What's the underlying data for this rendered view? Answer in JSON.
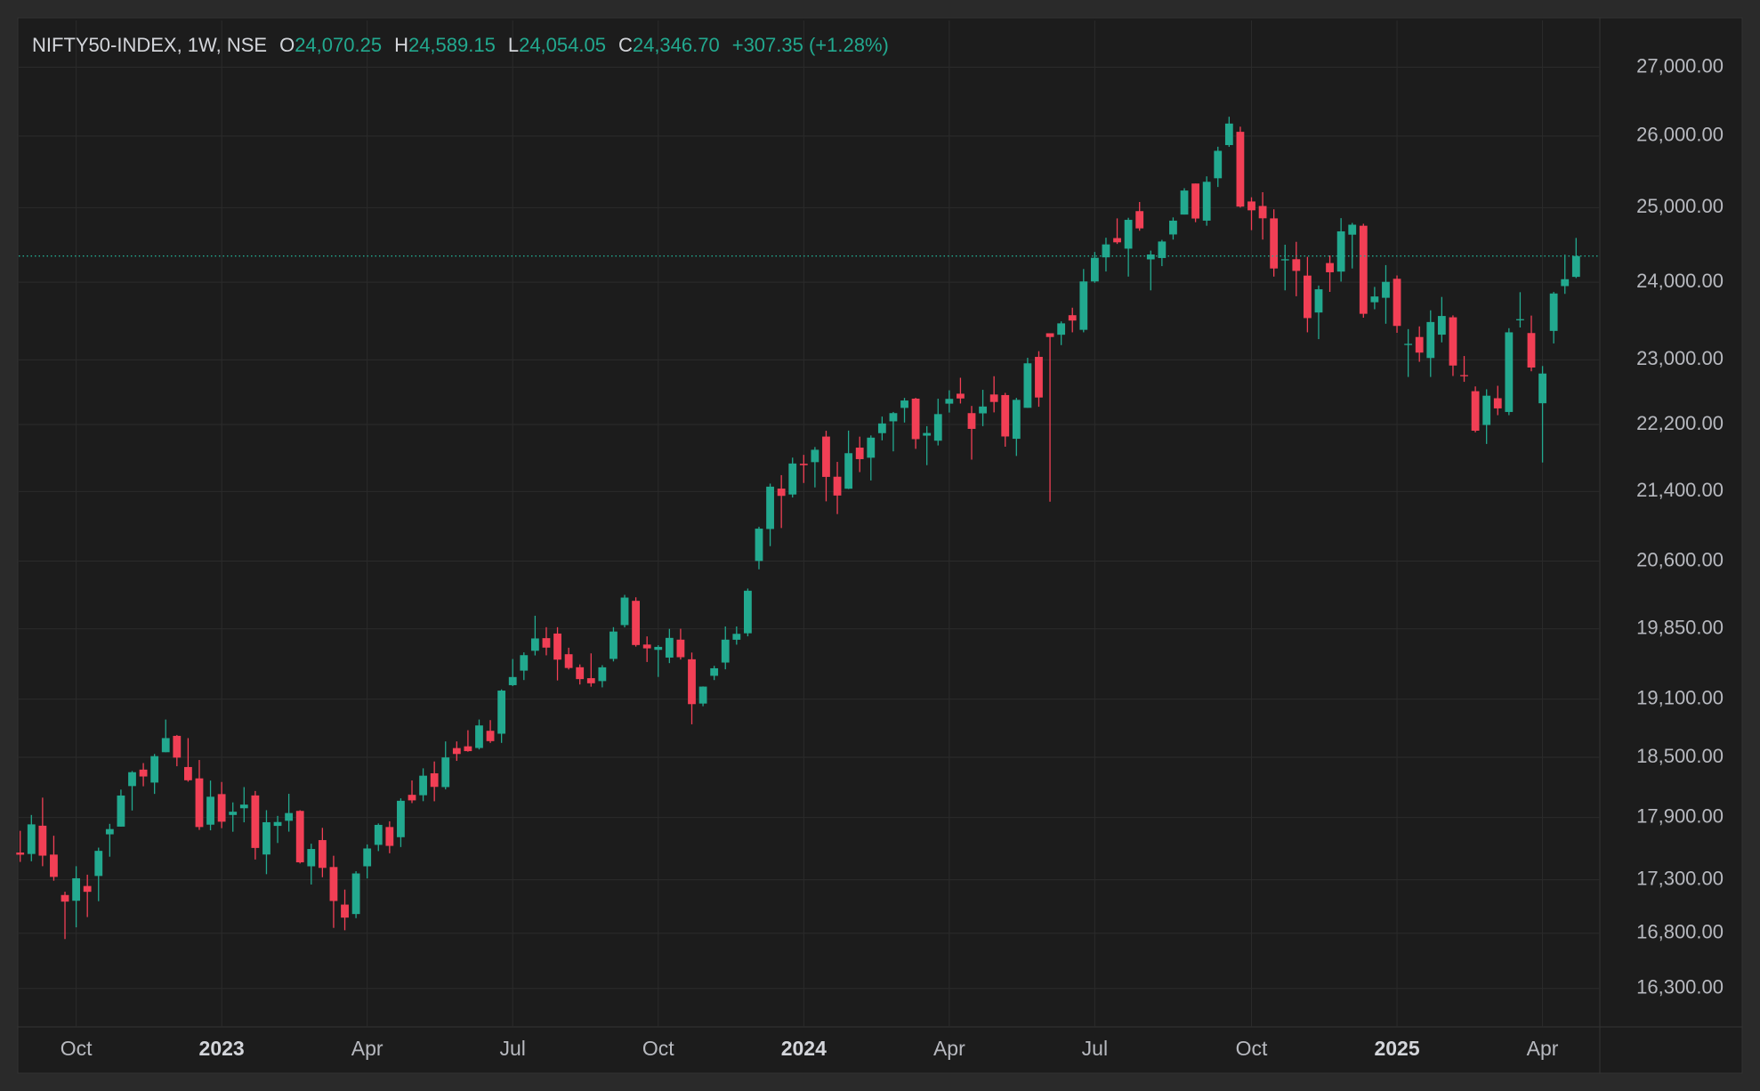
{
  "header": {
    "symbol": "NIFTY50-INDEX, 1W, NSE",
    "fields": [
      {
        "key": "O",
        "value": "24,070.25"
      },
      {
        "key": "H",
        "value": "24,589.15"
      },
      {
        "key": "L",
        "value": "24,054.05"
      },
      {
        "key": "C",
        "value": "24,346.70"
      }
    ],
    "change": "+307.35 (+1.28%)"
  },
  "chart_data": {
    "type": "candlestick",
    "log_scale": true,
    "grid": true,
    "up_color": "#22a98f",
    "down_color": "#f23f55",
    "categories": [
      null,
      null,
      null,
      null,
      null,
      "Oct",
      null,
      null,
      null,
      null,
      null,
      null,
      null,
      null,
      null,
      null,
      null,
      null,
      "2023",
      null,
      null,
      null,
      null,
      null,
      null,
      null,
      null,
      null,
      null,
      null,
      null,
      "Apr",
      null,
      null,
      null,
      null,
      null,
      null,
      null,
      null,
      null,
      null,
      null,
      null,
      "Jul",
      null,
      null,
      null,
      null,
      null,
      null,
      null,
      null,
      null,
      null,
      null,
      null,
      "Oct",
      null,
      null,
      null,
      null,
      null,
      null,
      null,
      null,
      null,
      null,
      null,
      null,
      "2024",
      null,
      null,
      null,
      null,
      null,
      null,
      null,
      null,
      null,
      null,
      null,
      null,
      "Apr",
      null,
      null,
      null,
      null,
      null,
      null,
      null,
      null,
      null,
      null,
      null,
      null,
      "Jul",
      null,
      null,
      null,
      null,
      null,
      null,
      null,
      null,
      null,
      null,
      null,
      null,
      null,
      "Oct",
      null,
      null,
      null,
      null,
      null,
      null,
      null,
      null,
      null,
      null,
      null,
      null,
      "2025",
      null,
      null,
      null,
      null,
      null,
      null,
      null,
      null,
      null,
      null,
      null,
      null,
      "Apr",
      null,
      null,
      null
    ],
    "open": [
      17560,
      17546,
      17820,
      17540,
      17156,
      17102,
      17241,
      17336,
      17736,
      17811,
      18211,
      18376,
      18246,
      18552,
      18719,
      18402,
      18288,
      17830,
      18131,
      17925,
      17991,
      18118,
      17541,
      17818,
      17868,
      17965,
      17428,
      17680,
      17421,
      17066,
      16978,
      17428,
      17634,
      17807,
      17708,
      18124,
      18120,
      18339,
      18201,
      18594,
      18612,
      18595,
      18771,
      18741,
      19246,
      19400,
      19612,
      19748,
      19798,
      19575,
      19436,
      19320,
      19289,
      19525,
      19890,
      20156,
      19679,
      19622,
      19539,
      19732,
      19521,
      19053,
      19345,
      19486,
      19731,
      19801,
      20601,
      20965,
      21434,
      21365,
      21728,
      21747,
      22054,
      21574,
      21433,
      21921,
      21800,
      22095,
      22239,
      22403,
      22517,
      22065,
      22004,
      22455,
      22578,
      22339,
      22336,
      22568,
      22561,
      22027,
      22404,
      23038,
      23338,
      23319,
      23570,
      23382,
      24010,
      24329,
      24587,
      24445,
      24953,
      24302,
      24320,
      24636,
      24906,
      25333,
      24823,
      25406,
      25872,
      26061,
      25085,
      25023,
      24854,
      24299,
      24304,
      24087,
      23605,
      24253,
      24140,
      24633,
      24754,
      23738,
      23796,
      24045,
      23195,
      23290,
      23024,
      23320,
      23543,
      22809,
      22609,
      22194,
      22522,
      22353,
      23515,
      23341,
      22460,
      23368,
      23949,
      24070.25
    ],
    "high": [
      17770,
      17925,
      18096,
      17722,
      17187,
      17429,
      17348,
      17607,
      17838,
      18176,
      18362,
      18442,
      18534,
      18887,
      18728,
      18696,
      18473,
      18266,
      18252,
      18049,
      18201,
      18162,
      17972,
      17916,
      18134,
      17972,
      17645,
      17799,
      17529,
      17207,
      17381,
      17638,
      17842,
      17863,
      18089,
      18267,
      18389,
      18458,
      18662,
      18662,
      18777,
      18887,
      18881,
      19201,
      19524,
      19595,
      19992,
      19867,
      19867,
      19645,
      19466,
      19584,
      19458,
      19867,
      20222,
      20195,
      19767,
      19672,
      19849,
      19850,
      19593,
      19233,
      19451,
      19875,
      19875,
      20292,
      20991,
      21493,
      21593,
      21801,
      21834,
      21928,
      22124,
      21750,
      22126,
      22053,
      22068,
      22297,
      22353,
      22526,
      22527,
      22180,
      22516,
      22620,
      22776,
      22427,
      22626,
      22795,
      22588,
      22526,
      23026,
      23110,
      23338,
      23490,
      23667,
      24174,
      24401,
      24592,
      24854,
      24862,
      25078,
      24419,
      24563,
      24867,
      25268,
      25333,
      25433,
      25849,
      26277,
      26134,
      25143,
      25213,
      24978,
      24498,
      24537,
      24336,
      23956,
      24354,
      24857,
      24792,
      24781,
      23938,
      24226,
      24089,
      23391,
      23426,
      23633,
      23807,
      23568,
      23049,
      22668,
      22633,
      22676,
      23403,
      23869,
      23565,
      22923,
      23872,
      24365,
      24589.15
    ],
    "low": [
      17470,
      17476,
      17429,
      17291,
      16747,
      16855,
      16950,
      17098,
      17520,
      17811,
      17969,
      18209,
      18133,
      18552,
      18410,
      18255,
      17779,
      17775,
      17796,
      17761,
      17853,
      17493,
      17353,
      17652,
      17762,
      17455,
      17255,
      17324,
      16850,
      16828,
      16940,
      17313,
      17574,
      17553,
      17613,
      18042,
      18061,
      18060,
      18178,
      18464,
      18557,
      18580,
      18647,
      18647,
      19236,
      19300,
      19562,
      19563,
      19296,
      19412,
      19253,
      19230,
      19223,
      19498,
      19865,
      19657,
      19492,
      19333,
      19480,
      19518,
      18838,
      19025,
      19300,
      19414,
      19678,
      19768,
      20507,
      20769,
      20976,
      21330,
      21500,
      21448,
      21285,
      21137,
      21429,
      21629,
      21530,
      22008,
      21876,
      22224,
      21906,
      21711,
      21947,
      22346,
      22457,
      21777,
      22180,
      22348,
      21932,
      21821,
      22404,
      22417,
      21281,
      23187,
      23350,
      23350,
      23992,
      24141,
      24508,
      24074,
      24686,
      23893,
      24212,
      24567,
      24906,
      24802,
      24754,
      25285,
      25847,
      25001,
      24694,
      24567,
      24074,
      23893,
      23816,
      23350,
      23263,
      23873,
      24008,
      24181,
      23538,
      23647,
      23460,
      23344,
      22786,
      22976,
      22786,
      23222,
      22798,
      22725,
      22105,
      21965,
      22314,
      22314,
      23412,
      22857,
      21743,
      23208,
      23847,
      24054.05
    ],
    "close": [
      17539,
      17833,
      17530,
      17327,
      17094,
      17314,
      17186,
      17576,
      17787,
      18117,
      18350,
      18307,
      18512,
      18696,
      18497,
      18269,
      17807,
      18105,
      17859,
      17957,
      18027,
      17604,
      17854,
      17856,
      17944,
      17466,
      17594,
      17413,
      17100,
      16945,
      17360,
      17599,
      17828,
      17624,
      18065,
      18069,
      18315,
      18203,
      18499,
      18534,
      18563,
      18826,
      18665,
      19189,
      19332,
      19565,
      19745,
      19646,
      19517,
      19428,
      19310,
      19266,
      19435,
      19820,
      20192,
      19674,
      19638,
      19654,
      19751,
      19543,
      19047,
      19231,
      19425,
      19732,
      19795,
      20268,
      20969,
      21457,
      21349,
      21731,
      21711,
      21895,
      21572,
      21353,
      21854,
      21783,
      22041,
      22213,
      22339,
      22494,
      22023,
      22097,
      22327,
      22514,
      22519,
      22147,
      22420,
      22476,
      22055,
      22502,
      22957,
      22531,
      23290,
      23465,
      23501,
      24010,
      24323,
      24502,
      24530,
      24834,
      24718,
      24367,
      24541,
      24823,
      25236,
      24852,
      25357,
      25791,
      26179,
      25015,
      24964,
      24855,
      24181,
      24304,
      24149,
      23533,
      23907,
      24131,
      24678,
      24768,
      23588,
      23813,
      24005,
      23432,
      23203,
      23092,
      23482,
      23560,
      22929,
      22796,
      22125,
      22553,
      22397,
      23350,
      23519,
      22904,
      22829,
      23852,
      24039.35,
      24346.7
    ],
    "ylim": [
      15960,
      27700
    ],
    "yticks": [
      {
        "value": 16300,
        "label": "16,300.00"
      },
      {
        "value": 16800,
        "label": "16,800.00"
      },
      {
        "value": 17300,
        "label": "17,300.00"
      },
      {
        "value": 17900,
        "label": "17,900.00"
      },
      {
        "value": 18500,
        "label": "18,500.00"
      },
      {
        "value": 19100,
        "label": "19,100.00"
      },
      {
        "value": 19850,
        "label": "19,850.00"
      },
      {
        "value": 20600,
        "label": "20,600.00"
      },
      {
        "value": 21400,
        "label": "21,400.00"
      },
      {
        "value": 22200,
        "label": "22,200.00"
      },
      {
        "value": 23000,
        "label": "23,000.00"
      },
      {
        "value": 24000,
        "label": "24,000.00"
      },
      {
        "value": 25000,
        "label": "25,000.00"
      },
      {
        "value": 26000,
        "label": "26,000.00"
      },
      {
        "value": 27000,
        "label": "27,000.00"
      }
    ]
  }
}
